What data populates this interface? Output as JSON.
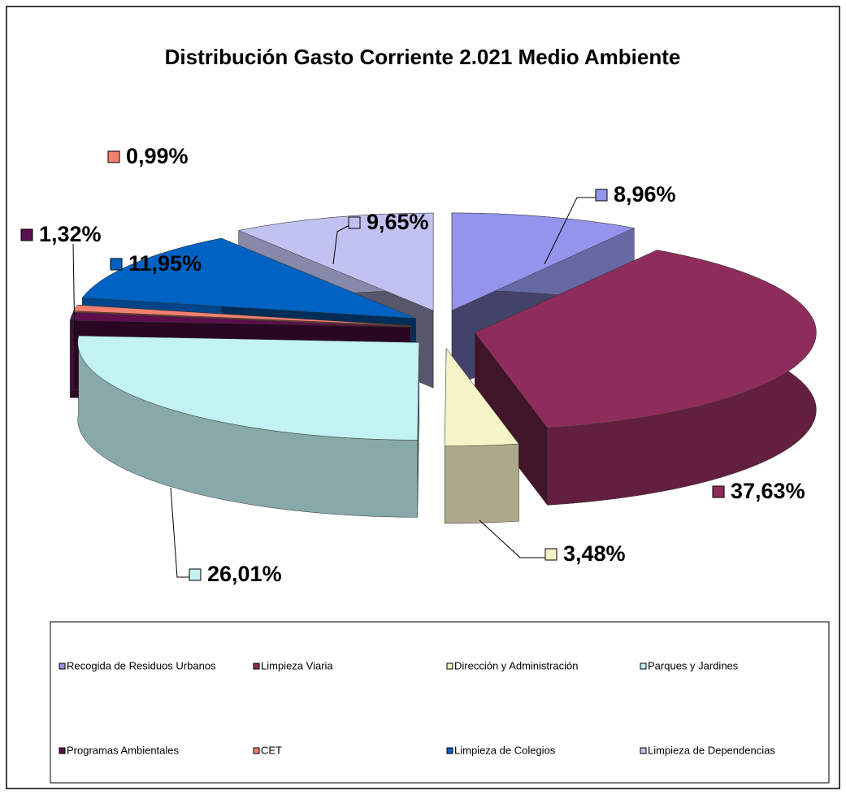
{
  "chart_data": {
    "type": "pie3d",
    "title": "Distribución Gasto Corriente 2.021 Medio Ambiente",
    "categories": [
      "Recogida de Residuos Urbanos",
      "Limpieza Viaria",
      "Dirección y Administración",
      "Parques y Jardines",
      "Programas Ambientales",
      "CET",
      "Limpieza de Colegios",
      "Limpieza de Dependencias"
    ],
    "values": [
      8.96,
      37.63,
      3.48,
      26.01,
      1.32,
      0.99,
      11.95,
      9.65
    ],
    "value_labels": [
      "8,96%",
      "37,63%",
      "3,48%",
      "26,01%",
      "1,32%",
      "0,99%",
      "11,95%",
      "9,65%"
    ],
    "colors": [
      "#9494ec",
      "#8e2d5c",
      "#f6f3c6",
      "#c2f2f2",
      "#5c0f4c",
      "#f48070",
      "#0063c4",
      "#c2c2f2"
    ],
    "legend": "bottom"
  }
}
